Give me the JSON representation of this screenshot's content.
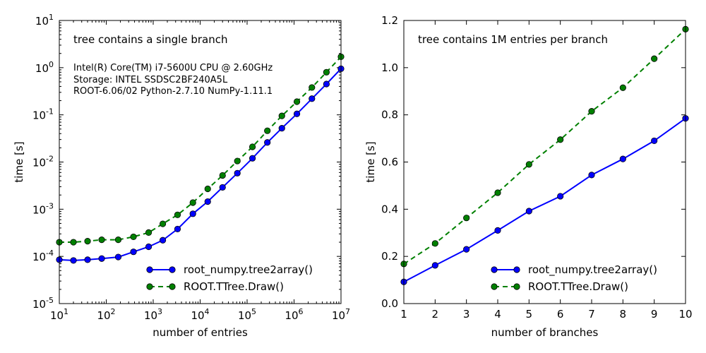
{
  "chart_data": [
    {
      "type": "line",
      "xscale": "log",
      "yscale": "log",
      "xlim": [
        10,
        10000000
      ],
      "ylim": [
        1e-05,
        10
      ],
      "xlabel": "number of entries",
      "ylabel": "time [s]",
      "xticks": [
        {
          "base": "10",
          "exp": "1",
          "value": 10
        },
        {
          "base": "10",
          "exp": "2",
          "value": 100
        },
        {
          "base": "10",
          "exp": "3",
          "value": 1000
        },
        {
          "base": "10",
          "exp": "4",
          "value": 10000
        },
        {
          "base": "10",
          "exp": "5",
          "value": 100000
        },
        {
          "base": "10",
          "exp": "6",
          "value": 1000000
        },
        {
          "base": "10",
          "exp": "7",
          "value": 10000000
        }
      ],
      "yticks": [
        {
          "base": "10",
          "exp": "-5",
          "value": 1e-05
        },
        {
          "base": "10",
          "exp": "-4",
          "value": 0.0001
        },
        {
          "base": "10",
          "exp": "-3",
          "value": 0.001
        },
        {
          "base": "10",
          "exp": "-2",
          "value": 0.01
        },
        {
          "base": "10",
          "exp": "-1",
          "value": 0.1
        },
        {
          "base": "10",
          "exp": "0",
          "value": 1
        },
        {
          "base": "10",
          "exp": "1",
          "value": 10
        }
      ],
      "annotations": [
        "tree contains a single branch",
        "Intel(R) Core(TM) i7-5600U CPU @ 2.60GHz",
        "Storage: INTEL SSDSC2BF240A5L",
        "ROOT-6.06/02 Python-2.7.10 NumPy-1.11.1"
      ],
      "legend_position": "lower-right",
      "series": [
        {
          "name": "root_numpy.tree2array()",
          "color": "#0000ff",
          "linestyle": "solid",
          "marker_color": "#0000ff",
          "x": [
            10,
            20,
            40,
            80,
            180,
            380,
            800,
            1600,
            3300,
            7000,
            14500,
            30000,
            62000,
            130000,
            270000,
            550000,
            1150000,
            2400000,
            4900000,
            10000000
          ],
          "y": [
            8.5e-05,
            8.2e-05,
            8.5e-05,
            9e-05,
            9.7e-05,
            0.000125,
            0.00016,
            0.00022,
            0.00038,
            0.0008,
            0.00145,
            0.0029,
            0.0058,
            0.012,
            0.026,
            0.052,
            0.105,
            0.22,
            0.45,
            0.95
          ]
        },
        {
          "name": "ROOT.TTree.Draw()",
          "color": "#008000",
          "linestyle": "dashed",
          "marker_color": "#008000",
          "x": [
            10,
            20,
            40,
            80,
            180,
            380,
            800,
            1600,
            3300,
            7000,
            14500,
            30000,
            62000,
            130000,
            270000,
            550000,
            1150000,
            2400000,
            4900000,
            10000000
          ],
          "y": [
            0.0002,
            0.0002,
            0.00021,
            0.000225,
            0.000225,
            0.00026,
            0.00032,
            0.00049,
            0.00076,
            0.00138,
            0.0027,
            0.0052,
            0.0105,
            0.021,
            0.046,
            0.095,
            0.19,
            0.38,
            0.8,
            1.7
          ]
        }
      ]
    },
    {
      "type": "line",
      "xlim": [
        1,
        10
      ],
      "ylim": [
        0,
        1.2
      ],
      "xlabel": "number of branches",
      "ylabel": "time [s]",
      "xticks": [
        "1",
        "2",
        "3",
        "4",
        "5",
        "6",
        "7",
        "8",
        "9",
        "10"
      ],
      "yticks": [
        "0.0",
        "0.2",
        "0.4",
        "0.6",
        "0.8",
        "1.0",
        "1.2"
      ],
      "annotations": [
        "tree contains 1M entries per branch"
      ],
      "legend_position": "lower-right",
      "series": [
        {
          "name": "root_numpy.tree2array()",
          "color": "#0000ff",
          "linestyle": "solid",
          "marker_color": "#0000ff",
          "x": [
            1,
            2,
            3,
            4,
            5,
            6,
            7,
            8,
            9,
            10
          ],
          "y": [
            0.092,
            0.162,
            0.23,
            0.31,
            0.392,
            0.455,
            0.545,
            0.613,
            0.69,
            0.785
          ]
        },
        {
          "name": "ROOT.TTree.Draw()",
          "color": "#008000",
          "linestyle": "dashed",
          "marker_color": "#008000",
          "x": [
            1,
            2,
            3,
            4,
            5,
            6,
            7,
            8,
            9,
            10
          ],
          "y": [
            0.168,
            0.255,
            0.363,
            0.47,
            0.59,
            0.695,
            0.815,
            0.915,
            1.038,
            1.163
          ]
        }
      ]
    }
  ]
}
